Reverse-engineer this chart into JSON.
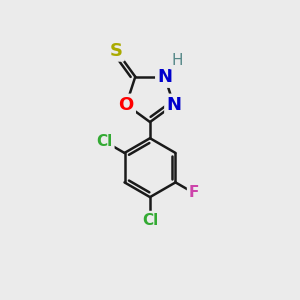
{
  "background_color": "#ebebeb",
  "bond_color": "#1a1a1a",
  "bond_width": 1.8,
  "dbo": 0.13,
  "atoms": {
    "S": {
      "color": "#aaaa00",
      "fontsize": 13,
      "fontweight": "bold"
    },
    "O": {
      "color": "#ff0000",
      "fontsize": 13,
      "fontweight": "bold"
    },
    "N": {
      "color": "#0000cc",
      "fontsize": 13,
      "fontweight": "bold"
    },
    "H": {
      "color": "#558888",
      "fontsize": 11,
      "fontweight": "normal"
    },
    "Cl": {
      "color": "#33aa33",
      "fontsize": 11,
      "fontweight": "bold"
    },
    "F": {
      "color": "#cc44aa",
      "fontsize": 11,
      "fontweight": "bold"
    }
  },
  "fig_width": 3.0,
  "fig_height": 3.0,
  "dpi": 100,
  "xlim": [
    0,
    10
  ],
  "ylim": [
    0,
    10
  ]
}
